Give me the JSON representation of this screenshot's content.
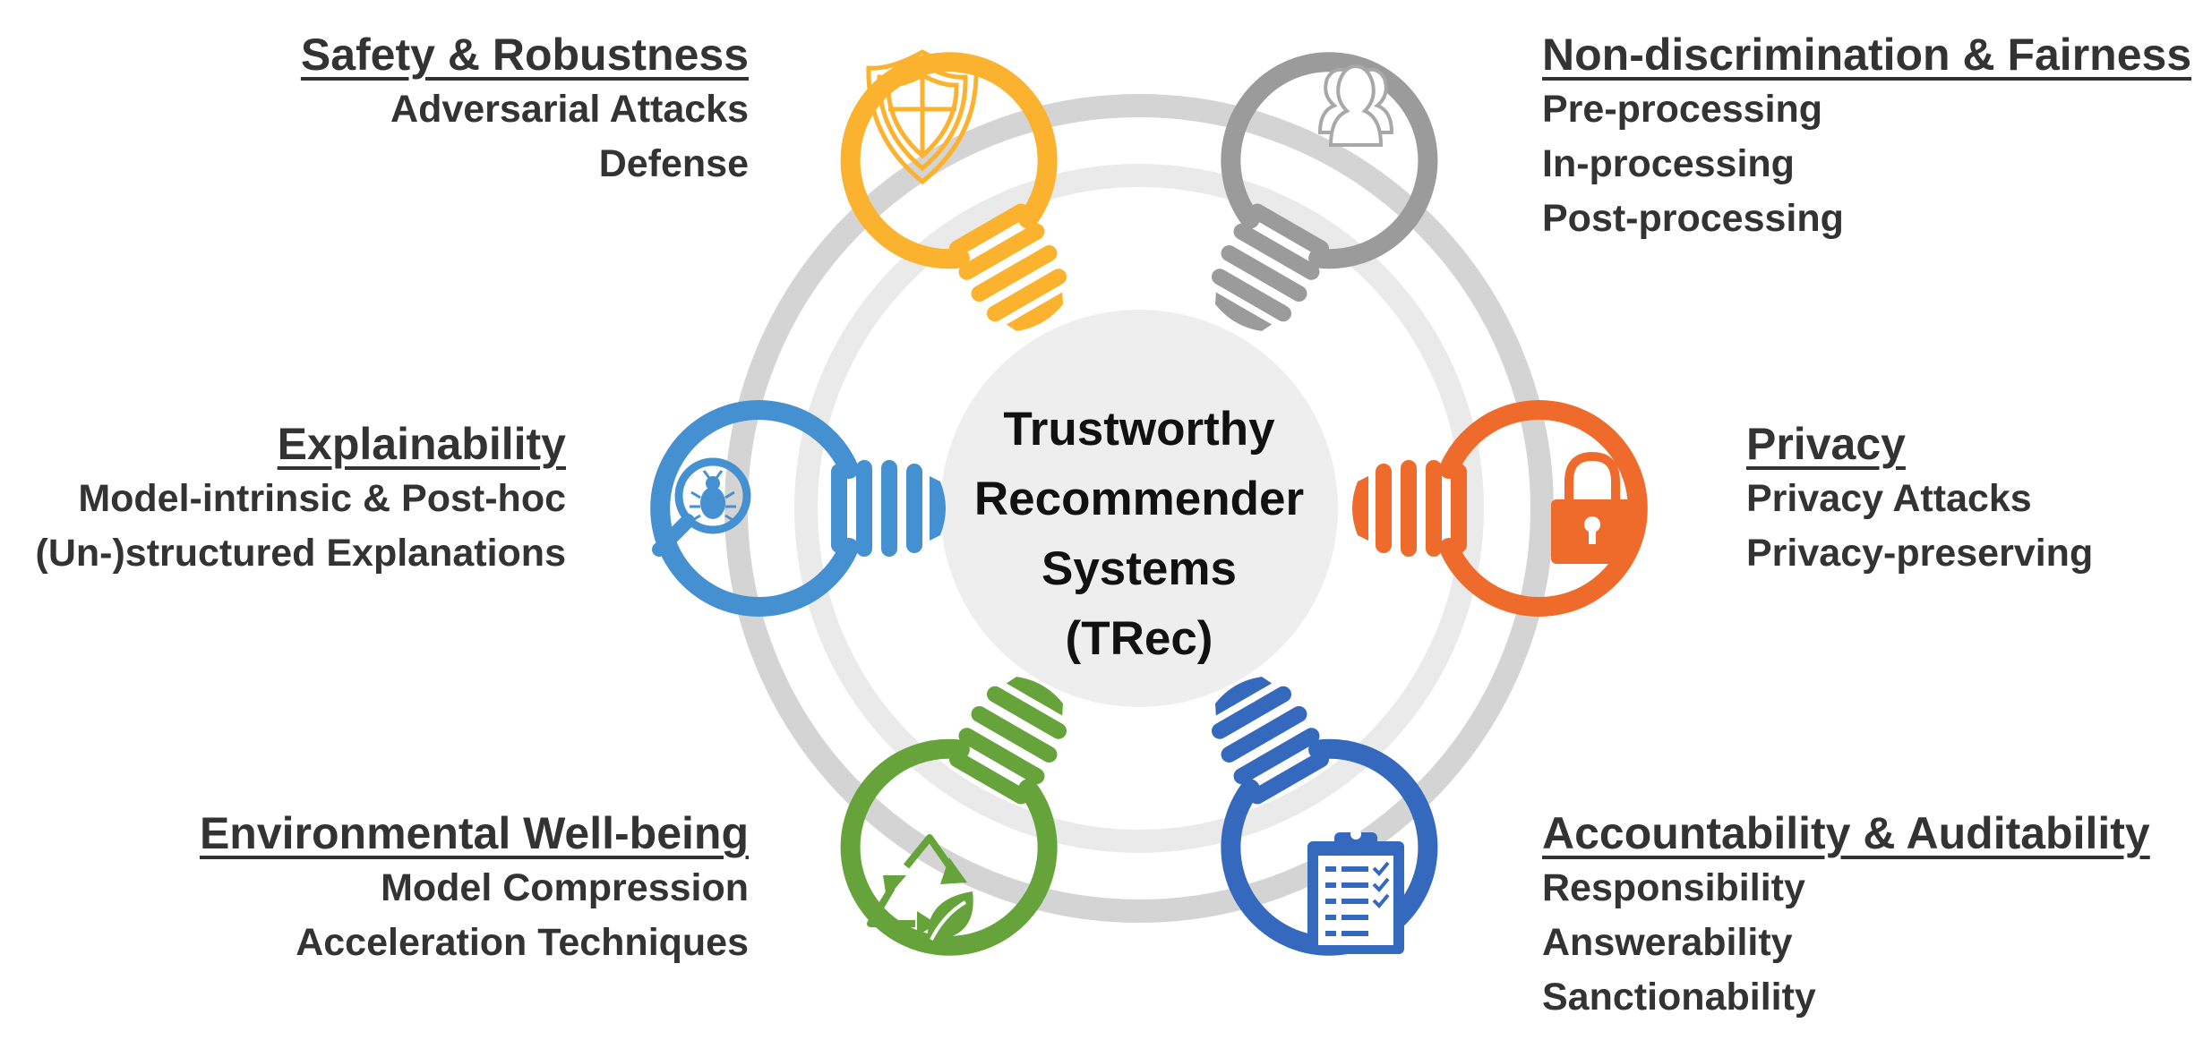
{
  "center": {
    "lines": [
      "Trustworthy",
      "Recommender",
      "Systems",
      "(TRec)"
    ]
  },
  "colors": {
    "safety": "#FBB22E",
    "fairness": "#9B9B9B",
    "explainability": "#4590D0",
    "privacy": "#EF6B2B",
    "environment": "#66A43B",
    "accountability": "#3469BE",
    "ring_outer": "#D4D4D4",
    "ring_inner": "#EAEAEA",
    "hub": "#EEEEEE"
  },
  "pillars": [
    {
      "key": "safety",
      "icon": "shield-icon",
      "title": "Safety & Robustness",
      "items": [
        "Adversarial Attacks",
        "Defense"
      ]
    },
    {
      "key": "fairness",
      "icon": "people-icon",
      "title": "Non-discrimination & Fairness",
      "items": [
        "Pre-processing",
        "In-processing",
        "Post-processing"
      ]
    },
    {
      "key": "explainability",
      "icon": "bug-magnifier-icon",
      "title": "Explainability",
      "items": [
        "Model-intrinsic & Post-hoc",
        "(Un-)structured Explanations"
      ]
    },
    {
      "key": "privacy",
      "icon": "padlock-icon",
      "title": "Privacy",
      "items": [
        "Privacy Attacks",
        "Privacy-preserving"
      ]
    },
    {
      "key": "environment",
      "icon": "recycle-leaf-icon",
      "title": "Environmental Well-being",
      "items": [
        "Model Compression",
        "Acceleration Techniques"
      ]
    },
    {
      "key": "accountability",
      "icon": "clipboard-icon",
      "title": "Accountability & Auditability",
      "items": [
        "Responsibility",
        "Answerability",
        "Sanctionability"
      ]
    }
  ]
}
